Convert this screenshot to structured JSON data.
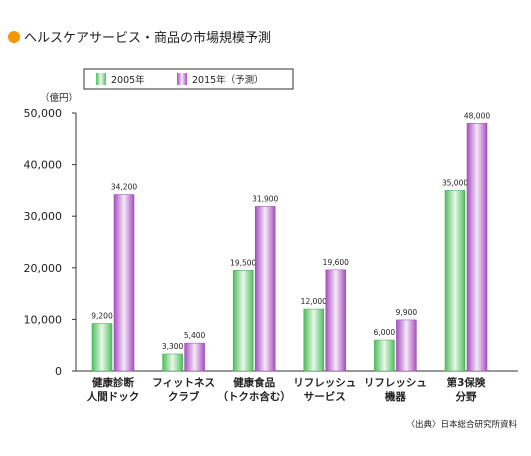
{
  "title": "ヘルスケアサービス・商品の市場規模予測",
  "source": "〈出典〉日本総合研究所資料",
  "chart_data": {
    "type": "bar",
    "title": "ヘルスケアサービス・商品の市場規模予測",
    "ylabel": "（億円）",
    "xlabel": "",
    "ylim": [
      0,
      50000
    ],
    "yticks": [
      "0",
      "10,000",
      "20,000",
      "30,000",
      "40,000",
      "50,000"
    ],
    "legend_position": "top-left",
    "grid": false,
    "categories": [
      [
        "健康診断",
        "人間ドック"
      ],
      [
        "フィットネス",
        "クラブ"
      ],
      [
        "健康食品",
        "（トクホ含む）"
      ],
      [
        "リフレッシュ",
        "サービス"
      ],
      [
        "リフレッシュ",
        "機器"
      ],
      [
        "第3保険",
        "分野"
      ]
    ],
    "series": [
      {
        "name": "2005年",
        "color": "#5cc86a",
        "values": [
          9200,
          3300,
          19500,
          12000,
          6000,
          35000
        ],
        "labels": [
          "9,200",
          "3,300",
          "19,500",
          "12,000",
          "6,000",
          "35,000"
        ]
      },
      {
        "name": "2015年（予測）",
        "color": "#b463c8",
        "values": [
          34200,
          5400,
          31900,
          19600,
          9900,
          48000
        ],
        "labels": [
          "34,200",
          "5,400",
          "31,900",
          "19,600",
          "9,900",
          "48,000"
        ]
      }
    ]
  }
}
